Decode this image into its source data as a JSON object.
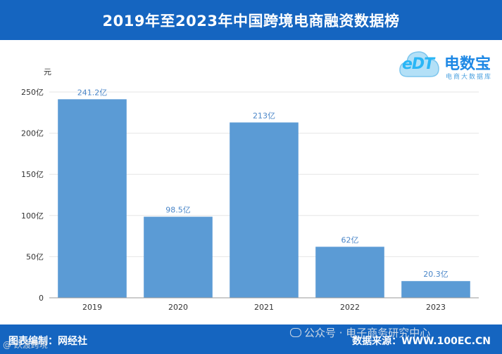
{
  "title": "2019年至2023年中国跨境电商融资数据榜",
  "logo": {
    "letters": "eDT",
    "name": "电数宝",
    "subtitle": "电商大数据库"
  },
  "footer": {
    "left": "图表编制：网经社",
    "right": "数据来源：WWW.100EC.CN"
  },
  "watermarks": {
    "right": "公众号 · 电子商务研究中心",
    "left": "@ 跃渡跨境"
  },
  "chart_data": {
    "type": "bar",
    "ylabel": "元",
    "categories": [
      "2019",
      "2020",
      "2021",
      "2022",
      "2023"
    ],
    "values": [
      241.2,
      98.5,
      213,
      62,
      20.3
    ],
    "data_labels": [
      "241.2亿",
      "98.5亿",
      "213亿",
      "62亿",
      "20.3亿"
    ],
    "yticks": [
      0,
      50,
      100,
      150,
      200,
      250
    ],
    "ytick_labels": [
      "0",
      "50亿",
      "100亿",
      "150亿",
      "200亿",
      "250亿"
    ],
    "ylim": [
      0,
      250
    ],
    "grid": true,
    "bar_color": "#5b9bd5"
  }
}
